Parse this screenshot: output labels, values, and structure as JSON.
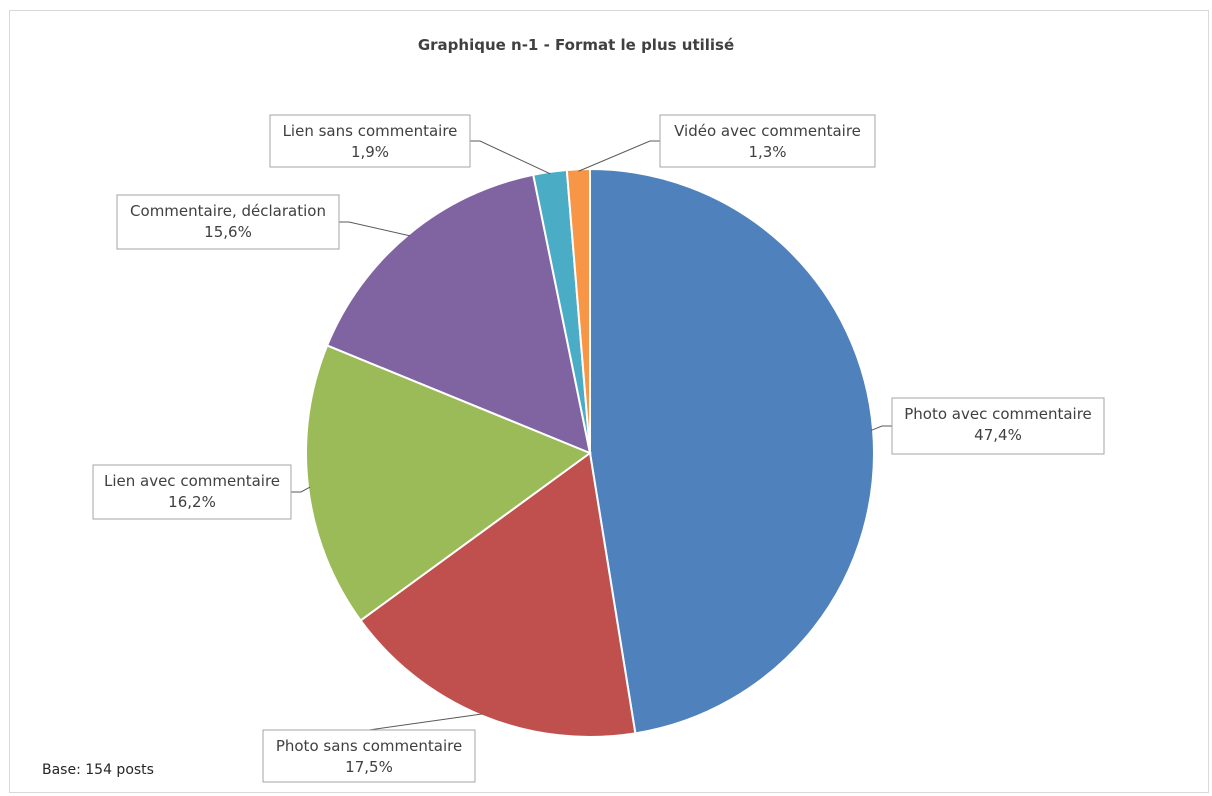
{
  "chart_data": {
    "type": "pie",
    "title": "Graphique  n-1 - Format le plus utilisé",
    "note": "Base: 154 posts",
    "slices": [
      {
        "label": "Photo avec commentaire",
        "value": 47.4,
        "display": "47,4%",
        "color": "#4F81BD"
      },
      {
        "label": "Photo sans commentaire",
        "value": 17.5,
        "display": "17,5%",
        "color": "#C0504D"
      },
      {
        "label": "Lien avec commentaire",
        "value": 16.2,
        "display": "16,2%",
        "color": "#9BBB59"
      },
      {
        "label": "Commentaire, déclaration",
        "value": 15.6,
        "display": "15,6%",
        "color": "#8064A2"
      },
      {
        "label": "Lien sans commentaire",
        "value": 1.9,
        "display": "1,9%",
        "color": "#4BACC6"
      },
      {
        "label": "Vidéo avec commentaire",
        "value": 1.3,
        "display": "1,3%",
        "color": "#F79646"
      }
    ]
  }
}
